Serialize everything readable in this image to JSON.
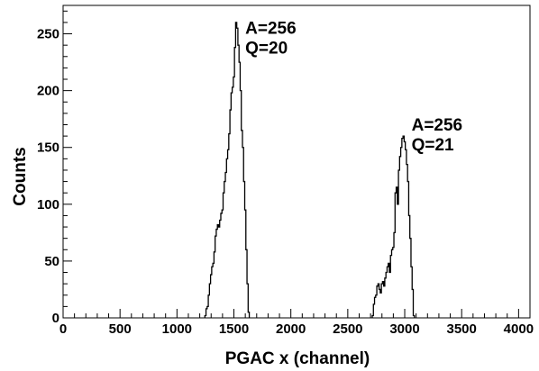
{
  "chart_data": {
    "type": "line",
    "xlabel": "PGAC x (channel)",
    "ylabel": "Counts",
    "xlim": [
      0,
      4100
    ],
    "ylim": [
      0,
      275
    ],
    "x_ticks": [
      0,
      500,
      1000,
      1500,
      2000,
      2500,
      3000,
      3500,
      4000
    ],
    "y_ticks": [
      0,
      50,
      100,
      150,
      200,
      250
    ],
    "grid": false,
    "series": [
      {
        "x": [
          1250,
          1260,
          1270,
          1280,
          1290,
          1300,
          1310,
          1320,
          1330,
          1340,
          1350,
          1360,
          1370,
          1380,
          1390,
          1400,
          1410,
          1420,
          1430,
          1440,
          1450,
          1460,
          1470,
          1480,
          1490,
          1500,
          1510,
          1520,
          1530,
          1540,
          1550,
          1560,
          1570,
          1580,
          1590,
          1600,
          1610,
          1620,
          1630
        ],
        "values": [
          2,
          8,
          10,
          20,
          30,
          38,
          45,
          48,
          58,
          72,
          78,
          82,
          80,
          86,
          92,
          95,
          110,
          120,
          128,
          140,
          148,
          162,
          183,
          198,
          203,
          212,
          238,
          260,
          255,
          240,
          225,
          200,
          165,
          150,
          120,
          95,
          60,
          30,
          5
        ]
      },
      {
        "x": [
          2720,
          2730,
          2740,
          2750,
          2760,
          2770,
          2780,
          2790,
          2800,
          2810,
          2820,
          2830,
          2840,
          2850,
          2860,
          2870,
          2880,
          2890,
          2900,
          2910,
          2920,
          2930,
          2940,
          2950,
          2960,
          2970,
          2980,
          2990,
          3000,
          3010,
          3020,
          3030,
          3040,
          3050,
          3060,
          3070,
          3080
        ],
        "values": [
          2,
          12,
          18,
          20,
          28,
          30,
          25,
          22,
          30,
          32,
          28,
          35,
          40,
          45,
          48,
          40,
          55,
          60,
          62,
          75,
          110,
          115,
          100,
          130,
          142,
          150,
          158,
          160,
          155,
          148,
          135,
          120,
          90,
          70,
          45,
          25,
          2
        ]
      }
    ],
    "annotations": [
      {
        "lines": [
          "A=256",
          "Q=20"
        ],
        "x": 1600,
        "y": 250
      },
      {
        "lines": [
          "A=256",
          "Q=21"
        ],
        "x": 3060,
        "y": 165
      }
    ]
  }
}
